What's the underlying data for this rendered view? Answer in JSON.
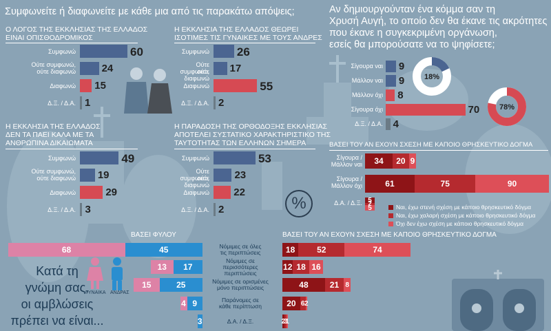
{
  "colors": {
    "background": "#8aa3b5",
    "navy": "#4b6591",
    "red": "#d64a53",
    "grey": "#6b7b86",
    "pink": "#dd82a6",
    "blue": "#2a8ed0",
    "dark_red": "#8e1417",
    "mid_red": "#b52a2f",
    "light_red": "#dd4f58"
  },
  "header": {
    "main_question": "Συμφωνείτε ή διαφωνείτε με κάθε μια από τις παρακάτω απόψεις;",
    "right_question_lines": [
      "Αν δημιουργούνταν ένα κόμμα σαν τη",
      "Χρυσή Αυγή, το οποίο δεν θα έκανε τις ακρότητες",
      "που έκανε η συγκεκριμένη οργάνωση,",
      "εσείς θα μπορούσατε να το ψηφίσετε;"
    ]
  },
  "labels": {
    "agree": "Συμφωνώ",
    "neither_1": "Ούτε συμφωνώ,",
    "neither_2": "ούτε διαφωνώ",
    "disagree": "Διαφωνώ",
    "dk": "Δ.Ξ. / Δ.Α."
  },
  "percent_symbol": "%",
  "icons": {
    "women_label": "ΓΥΝΑΙΚΑ",
    "men_label": "ΑΝΔΡΑΣ"
  },
  "chart_data": [
    {
      "type": "bar",
      "title_lines": [
        "Ο ΛΟΓΟΣ ΤΗΣ ΕΚΚΛΗΣΙΑΣ ΤΗΣ ΕΛΛΑΔΟΣ",
        "ΕΙΝΑΙ ΟΠΙΣΘΟΔΡΟΜΙΚΟΣ"
      ],
      "categories": [
        "Συμφωνώ",
        "Ούτε συμφωνώ, ούτε διαφωνώ",
        "Διαφωνώ",
        "Δ.Ξ. / Δ.Α."
      ],
      "values": [
        60,
        24,
        15,
        1
      ]
    },
    {
      "type": "bar",
      "title_lines": [
        "Η ΕΚΚΛΗΣΙΑ ΤΗΣ ΕΛΛΑΔΟΣ ΘΕΩΡΕΙ",
        "ΙΣΟΤΙΜΕΣ ΤΙΣ ΓΥΝΑΙΚΕΣ ΜΕ ΤΟΥΣ ΑΝΔΡΕΣ"
      ],
      "categories": [
        "Συμφωνώ",
        "Ούτε συμφωνώ, ούτε διαφωνώ",
        "Διαφωνώ",
        "Δ.Ξ. / Δ.Α."
      ],
      "values": [
        26,
        17,
        55,
        2
      ]
    },
    {
      "type": "bar",
      "title_lines": [
        "Η ΕΚΚΛΗΣΙΑ ΤΗΣ ΕΛΛΑΔΟΣ",
        "ΔΕΝ ΤΑ ΠΑΕΙ ΚΑΛΑ ΜΕ ΤΑ",
        "ΑΝΘΡΩΠΙΝΑ ΔΙΚΑΙΩΜΑΤΑ"
      ],
      "categories": [
        "Συμφωνώ",
        "Ούτε συμφωνώ, ούτε διαφωνώ",
        "Διαφωνώ",
        "Δ.Ξ. / Δ.Α."
      ],
      "values": [
        49,
        19,
        29,
        3
      ]
    },
    {
      "type": "bar",
      "title_lines": [
        "Η ΠΑΡΑΔΟΣΗ ΤΗΣ ΟΡΘΟΔΟΞΗΣ ΕΚΚΛΗΣΙΑΣ",
        "ΑΠΟΤΕΛΕΙ ΣΥΣΤΑΤΙΚΟ ΧΑΡΑΚΤΗΡΙΣΤΙΚΟ ΤΗΣ",
        "ΤΑΥΤΟΤΗΤΑΣ ΤΩΝ ΕΛΛΗΝΩΝ ΣΗΜΕΡΑ"
      ],
      "categories": [
        "Συμφωνώ",
        "Ούτε συμφωνώ, ούτε διαφωνώ",
        "Διαφωνώ",
        "Δ.Ξ. / Δ.Α."
      ],
      "values": [
        53,
        23,
        22,
        2
      ]
    },
    {
      "type": "bar",
      "categories": [
        "Σίγουρα ναι",
        "Μάλλον ναι",
        "Μάλλον όχι",
        "Σίγουρα όχι",
        "Δ.Ξ. / Δ.Α."
      ],
      "values": [
        9,
        9,
        8,
        70,
        4
      ]
    },
    {
      "type": "pie",
      "values": [
        18,
        82
      ],
      "label": "18%"
    },
    {
      "type": "pie",
      "values": [
        78,
        22
      ],
      "label": "78%"
    },
    {
      "type": "bar",
      "title": "ΒΑΣΕΙ ΤΟΥ ΑΝ ΕΧΟΥΝ ΣΧΕΣΗ ΜΕ ΚΑΠΟΙΟ ΘΡΗΣΚΕΥΤΙΚΟ ΔΟΓΜΑ",
      "categories": [
        "Σίγουρα / Μάλλον ναι",
        "Σίγουρα / Μάλλον όχι",
        "Δ.Α. / Δ.Ξ."
      ],
      "series": [
        {
          "name": "Ναι, έχω στενή σχέση με κάποιο θρησκευτικό δόγμα",
          "values": [
            34,
            61,
            5
          ]
        },
        {
          "name": "Ναι, έχω χαλαρή σχέση με κάποιο θρησκευτικό δόγμα",
          "values": [
            20,
            75,
            2
          ]
        },
        {
          "name": "Όχι δεν έχω σχέση με κάποιο θρησκευτικό δόγμα",
          "values": [
            9,
            90,
            5
          ]
        }
      ]
    },
    {
      "type": "bar",
      "title": "ΒΑΣΕΙ ΦΥΛΟΥ",
      "categories": [
        "Νόμιμες σε όλες τις περιπτώσεις",
        "Νόμιμες σε περισσότερες περιπτώσεις",
        "Νόμιμες σε ορισμένες μόνο περιπτώσεις",
        "Παράνομες σε κάθε περίπτωση",
        "Δ.Α. / Δ.Ξ."
      ],
      "series": [
        {
          "name": "ΓΥΝΑΙΚΑ",
          "values": [
            68,
            13,
            15,
            4,
            0
          ]
        },
        {
          "name": "ΑΝΔΡΑΣ",
          "values": [
            45,
            17,
            25,
            9,
            3
          ]
        }
      ]
    },
    {
      "type": "bar",
      "title": "ΒΑΣΕΙ ΤΟΥ ΑΝ ΕΧΟΥΝ ΣΧΕΣΗ ΜΕ ΚΑΠΟΙΟ ΘΡΗΣΚΕΥΤΙΚΟ ΔΟΓΜΑ",
      "categories": [
        "Νόμιμες σε όλες τις περιπτώσεις",
        "Νόμιμες σε περισσότερες περιπτώσεις",
        "Νόμιμες σε ορισμένες μόνο περιπτώσεις",
        "Παράνομες σε κάθε περίπτωση",
        "Δ.Α. / Δ.Ξ."
      ],
      "series": [
        {
          "values": [
            18,
            12,
            48,
            20,
            2
          ]
        },
        {
          "values": [
            52,
            18,
            21,
            6,
            3
          ]
        },
        {
          "values": [
            74,
            16,
            8,
            2,
            1
          ]
        }
      ]
    }
  ],
  "abortion": {
    "question_lines": [
      "Κατά τη",
      "γνώμη σας,",
      "οι αμβλώσεις",
      "πρέπει να είναι..."
    ],
    "center_labels": [
      [
        "Νόμιμες σε όλες",
        "τις περιπτώσεις"
      ],
      [
        "Νόμιμες σε",
        "περισσότερες",
        "περιπτώσεις"
      ],
      [
        "Νόμιμες σε ορισμένες",
        "μόνο περιπτώσεις"
      ],
      [
        "Παράνομες σε",
        "κάθε περίπτωση"
      ],
      [
        "Δ.Α. / Δ.Ξ."
      ]
    ]
  }
}
